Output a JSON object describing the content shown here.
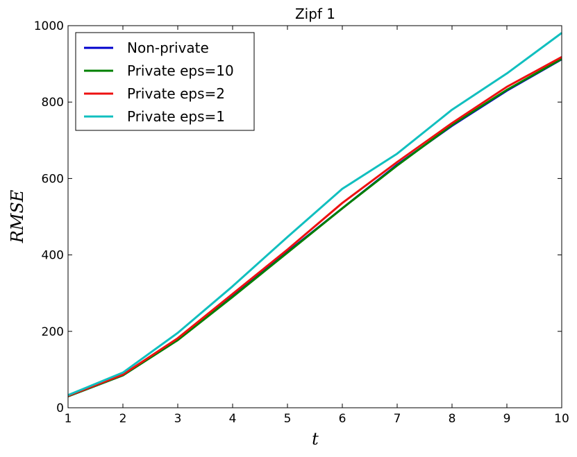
{
  "chart_data": {
    "type": "line",
    "title": "Zipf 1",
    "xlabel": "t",
    "ylabel": "RMSE",
    "xlim": [
      1,
      10
    ],
    "ylim": [
      0,
      1000
    ],
    "x_ticks": [
      1,
      2,
      3,
      4,
      5,
      6,
      7,
      8,
      9,
      10
    ],
    "y_ticks": [
      0,
      200,
      400,
      600,
      800,
      1000
    ],
    "grid": false,
    "legend_position": "top-left",
    "x": [
      1,
      2,
      3,
      4,
      5,
      6,
      7,
      8,
      9,
      10
    ],
    "series": [
      {
        "name": "Non-private",
        "color": "#0000cc",
        "values": [
          30,
          85,
          178,
          292,
          408,
          522,
          636,
          738,
          830,
          912
        ]
      },
      {
        "name": "Private eps=10",
        "color": "#008000",
        "values": [
          30,
          85,
          177,
          290,
          406,
          522,
          634,
          740,
          832,
          913
        ]
      },
      {
        "name": "Private eps=2",
        "color": "#ee1111",
        "values": [
          31,
          87,
          182,
          298,
          414,
          536,
          643,
          745,
          840,
          918
        ]
      },
      {
        "name": "Private eps=1",
        "color": "#11bfbf",
        "values": [
          33,
          92,
          196,
          318,
          447,
          573,
          665,
          780,
          875,
          981
        ]
      }
    ]
  }
}
